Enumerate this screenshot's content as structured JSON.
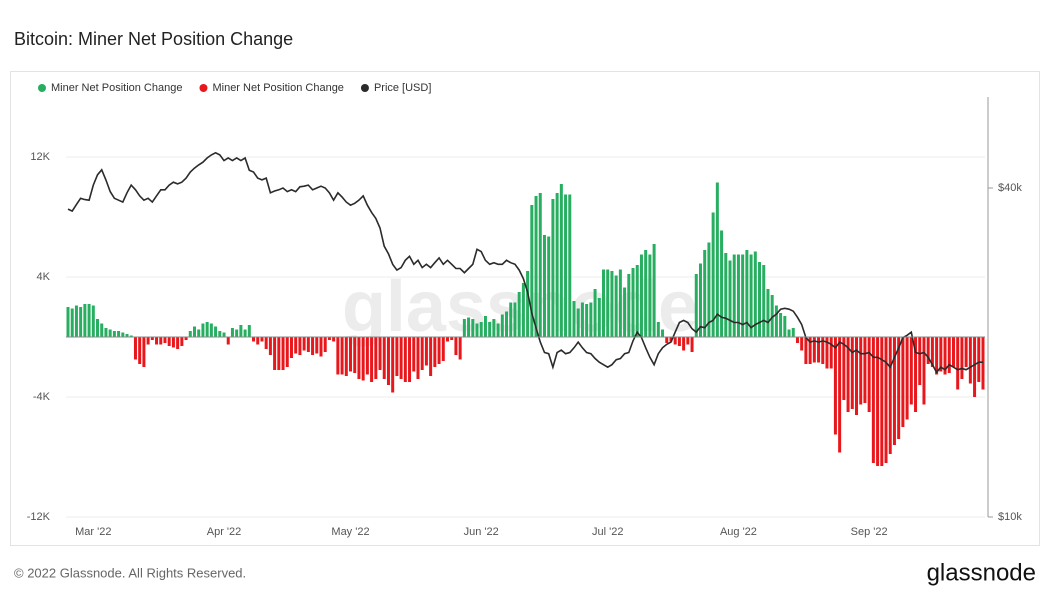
{
  "chart_data": {
    "type": "bar",
    "title": "Bitcoin: Miner Net Position Change",
    "categories": [
      null,
      null,
      null,
      null,
      null,
      null,
      "Mar '22",
      null,
      null,
      null,
      null,
      null,
      null,
      null,
      null,
      null,
      null,
      null,
      null,
      null,
      null,
      null,
      null,
      null,
      null,
      null,
      null,
      null,
      null,
      null,
      null,
      null,
      null,
      null,
      null,
      null,
      null,
      "Apr '22",
      null,
      null,
      null,
      null,
      null,
      null,
      null,
      null,
      null,
      null,
      null,
      null,
      null,
      null,
      null,
      null,
      null,
      null,
      null,
      null,
      null,
      null,
      null,
      null,
      null,
      null,
      null,
      null,
      null,
      "May '22",
      null,
      null,
      null,
      null,
      null,
      null,
      null,
      null,
      null,
      null,
      null,
      null,
      null,
      null,
      null,
      null,
      null,
      null,
      null,
      null,
      null,
      null,
      null,
      null,
      null,
      null,
      null,
      null,
      null,
      null,
      "Jun '22",
      null,
      null,
      null,
      null,
      null,
      null,
      null,
      null,
      null,
      null,
      null,
      null,
      null,
      null,
      null,
      null,
      null,
      null,
      null,
      null,
      null,
      null,
      null,
      null,
      null,
      null,
      null,
      null,
      null,
      "Jul '22",
      null,
      null,
      null,
      null,
      null,
      null,
      null,
      null,
      null,
      null,
      null,
      null,
      null,
      null,
      null,
      null,
      null,
      null,
      null,
      null,
      null,
      null,
      null,
      null,
      null,
      null,
      null,
      null,
      null,
      null,
      "Aug '22",
      null,
      null,
      null,
      null,
      null,
      null,
      null,
      null,
      null,
      null,
      null,
      null,
      null,
      null,
      null,
      null,
      null,
      null,
      null,
      null,
      null,
      null,
      null,
      null,
      null,
      null,
      null,
      null,
      null,
      null,
      "Sep '22",
      null,
      null,
      null,
      null,
      null,
      null,
      null,
      null,
      null,
      null,
      null,
      null,
      null,
      null,
      null,
      null,
      null,
      null,
      null,
      null,
      null,
      null,
      null,
      null,
      null,
      null,
      null
    ],
    "series": [
      {
        "name": "Miner Net Position Change",
        "color": "#27ae60",
        "type": "bar",
        "values": [
          2000,
          1900,
          2100,
          2000,
          2200,
          2200,
          2100,
          1200,
          900,
          600,
          500,
          400,
          400,
          300,
          200,
          100,
          -1500,
          -1800,
          -2000,
          -500,
          -200,
          -500,
          -500,
          -400,
          -600,
          -700,
          -800,
          -600,
          -200,
          400,
          700,
          500,
          900,
          1000,
          900,
          700,
          400,
          300,
          -500,
          600,
          500,
          800,
          500,
          800,
          -300,
          -500,
          -300,
          -800,
          -1200,
          -2200,
          -2200,
          -2200,
          -2000,
          -1400,
          -1100,
          -1200,
          -900,
          -1000,
          -1200,
          -1100,
          -1300,
          -1000,
          -200,
          -300,
          -2500,
          -2500,
          -2600,
          -2300,
          -2400,
          -2800,
          -2900,
          -2500,
          -3000,
          -2800,
          -2200,
          -2800,
          -3200,
          -3700,
          -2600,
          -2800,
          -3000,
          -3000,
          -2300,
          -2800,
          -2200,
          -1900,
          -2600,
          -2000,
          -1800,
          -1600,
          -300,
          -200,
          -1200,
          -1500,
          1200,
          1300,
          1200,
          900,
          1000,
          1400,
          1000,
          1200,
          900,
          1500,
          1700,
          2300,
          2300,
          3000,
          3600,
          4400,
          8800,
          9400,
          9600,
          6800,
          6700,
          9200,
          9600,
          10200,
          9500,
          9500,
          2400,
          1900,
          2300,
          2200,
          2300,
          3200,
          2600,
          4500,
          4500,
          4400,
          4100,
          4500,
          3300,
          4200,
          4600,
          4800,
          5500,
          5800,
          5500,
          6200,
          1000,
          500,
          -400,
          -300,
          -500,
          -600,
          -900,
          -500,
          -1000,
          4200,
          4900,
          5800,
          6300,
          8300,
          10300,
          7100,
          5600,
          5100,
          5500,
          5500,
          5500,
          5800,
          5500,
          5700,
          5000,
          4800,
          3200,
          2800,
          2100,
          1600,
          1400,
          500,
          600,
          -400,
          -900,
          -1800,
          -1800,
          -1700,
          -1700,
          -1800,
          -2100,
          -2100,
          -6500,
          -7700,
          -4200,
          -5000,
          -4800,
          -5200,
          -4500,
          -4400,
          -5000,
          -8400,
          -8600,
          -8600,
          -8400,
          -7800,
          -7200,
          -6800,
          -6000,
          -5500,
          -4500,
          -5000,
          -3200,
          -4500,
          -1800,
          -2000,
          -2500,
          -2300,
          -2500,
          -2400,
          -2000,
          -3500,
          -2800,
          -2000,
          -3100,
          -4000,
          -3000,
          -3500
        ]
      },
      {
        "name": "Miner Net Position Change",
        "color": "#e8171c",
        "type": "negative"
      },
      {
        "name": "Price [USD]",
        "color": "#2b2b2b",
        "type": "line",
        "axis": "y2",
        "values": [
          36600,
          36300,
          37300,
          38300,
          38100,
          38000,
          40500,
          42300,
          43200,
          41400,
          39400,
          38300,
          38000,
          37700,
          39200,
          40500,
          39700,
          38700,
          38000,
          38300,
          37700,
          38700,
          39700,
          39700,
          40500,
          41000,
          40700,
          41000,
          41700,
          42800,
          43500,
          44100,
          44600,
          45400,
          46000,
          46400,
          46000,
          44900,
          45400,
          44900,
          45400,
          44900,
          45400,
          43100,
          42800,
          41700,
          41400,
          41700,
          39200,
          39500,
          39700,
          40000,
          39400,
          39700,
          39400,
          40200,
          40300,
          40500,
          39700,
          40000,
          40300,
          40000,
          39200,
          38000,
          39200,
          38500,
          37700,
          37200,
          37500,
          38000,
          38700,
          37200,
          36100,
          35200,
          33800,
          31300,
          30300,
          29000,
          28300,
          28600,
          29500,
          30000,
          29000,
          29500,
          28600,
          29000,
          28600,
          29200,
          29800,
          29000,
          29500,
          29000,
          28500,
          28500,
          28000,
          28500,
          29000,
          30900,
          30600,
          29500,
          29000,
          29200,
          29000,
          29000,
          29500,
          29200,
          29000,
          28300,
          27300,
          25800,
          23600,
          22200,
          20900,
          20000,
          19900,
          18800,
          20000,
          20200,
          19900,
          20000,
          20400,
          20900,
          20400,
          20000,
          19900,
          19500,
          19200,
          19000,
          18800,
          19000,
          19400,
          19500,
          19900,
          20000,
          21000,
          21800,
          21300,
          20400,
          19600,
          19000,
          19900,
          20400,
          20700,
          20900,
          21800,
          22700,
          22900,
          22700,
          22100,
          21800,
          22300,
          22200,
          22700,
          22900,
          23500,
          23200,
          23100,
          22900,
          22700,
          22700,
          22500,
          22700,
          22200,
          22500,
          22700,
          22900,
          22700,
          23200,
          23500,
          24000,
          24100,
          24000,
          23800,
          23200,
          22500,
          21300,
          20900,
          21000,
          20900,
          21000,
          20900,
          20700,
          20400,
          20900,
          20700,
          20400,
          20000,
          20200,
          19900,
          19900,
          20000,
          19600,
          19600,
          19400,
          19200,
          18800,
          19600,
          20400,
          21300,
          21500,
          21800,
          20000,
          19900,
          20000,
          19600,
          19000,
          18400,
          18800,
          18600,
          19000,
          18800,
          18600,
          18700,
          18600,
          18800,
          19000,
          19200,
          19200
        ]
      }
    ],
    "ylim": [
      -12000,
      16000
    ],
    "yticks": [
      {
        "value": -12000,
        "label": "-12K"
      },
      {
        "value": -4000,
        "label": "-4K"
      },
      {
        "value": 4000,
        "label": "4K"
      },
      {
        "value": 12000,
        "label": "12K"
      }
    ],
    "y2lim": [
      10000,
      58700
    ],
    "y2log": true,
    "y2ticks": [
      {
        "value": 10000,
        "label": "$10k"
      },
      {
        "value": 40000,
        "label": "$40k"
      }
    ],
    "grid": true,
    "legend": "top-left"
  },
  "watermark": "glassnode",
  "copyright": "© 2022 Glassnode. All Rights Reserved.",
  "logo": "glassnode"
}
